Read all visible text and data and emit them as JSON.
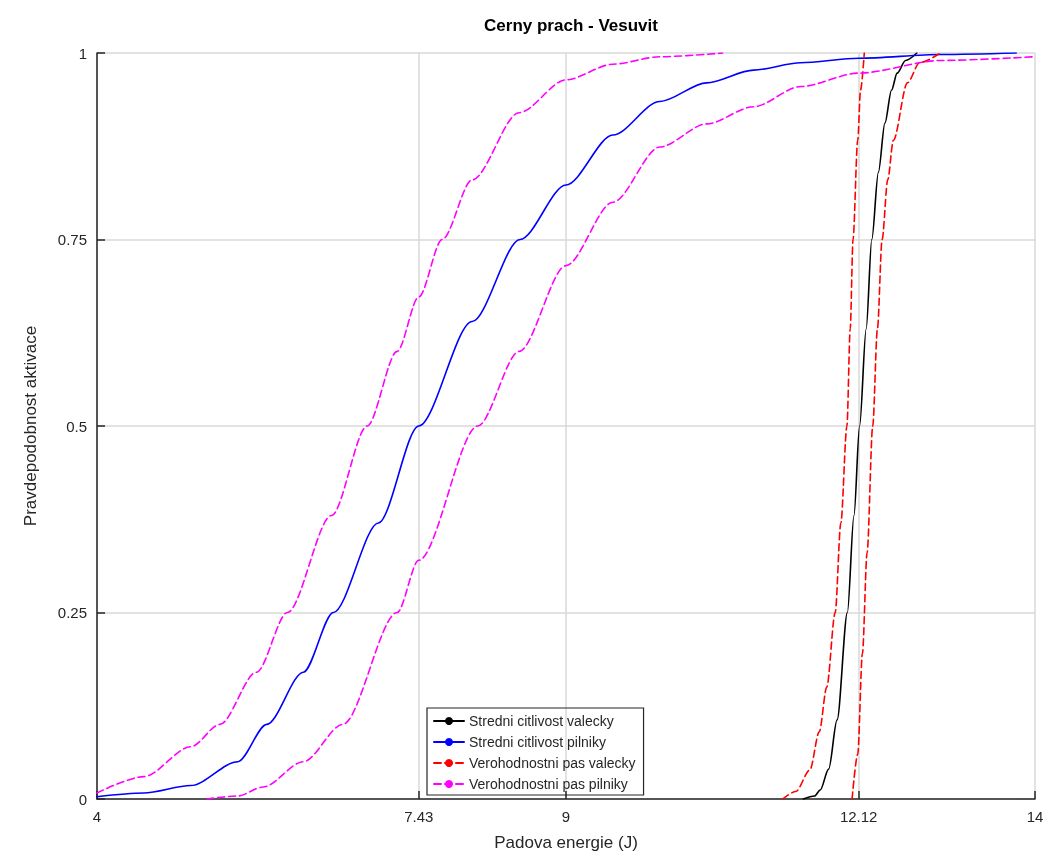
{
  "chart_data": {
    "type": "line",
    "title": "Cerny prach - Vesuvit",
    "xlabel": "Padova energie (J)",
    "ylabel": "Pravdepodobnost aktivace",
    "xlim": [
      4,
      14
    ],
    "xticks": [
      4,
      7.43,
      9,
      12.12,
      14
    ],
    "ylim": [
      0,
      1
    ],
    "yticks": [
      0,
      0.25,
      0.5,
      0.75,
      1
    ],
    "grid": true,
    "legend": "bottom",
    "marker": "none",
    "series": [
      {
        "name": "Stredni citlivost valecky",
        "color": "#000000",
        "line_style": "solid",
        "x": [
          11.53,
          11.65,
          11.71,
          11.8,
          11.89,
          12.0,
          12.07,
          12.13,
          12.2,
          12.26,
          12.33,
          12.4,
          12.47,
          12.53,
          12.62,
          12.74
        ],
        "values": [
          0,
          0.004,
          0.012,
          0.04,
          0.106,
          0.25,
          0.38,
          0.5,
          0.63,
          0.75,
          0.84,
          0.906,
          0.95,
          0.973,
          0.99,
          1.0
        ]
      },
      {
        "name": "Stredni citlivost pilniky",
        "color": "#0000ff",
        "line_style": "solid",
        "x": [
          4,
          4.5,
          5,
          5.5,
          5.81,
          6.2,
          6.52,
          7,
          7.43,
          8,
          8.51,
          9,
          9.5,
          10,
          10.5,
          11,
          11.5,
          12.12,
          13,
          13.8
        ],
        "values": [
          0.003,
          0.008,
          0.018,
          0.05,
          0.1,
          0.17,
          0.25,
          0.37,
          0.5,
          0.64,
          0.75,
          0.823,
          0.89,
          0.935,
          0.96,
          0.977,
          0.987,
          0.993,
          0.998,
          1.0
        ]
      },
      {
        "name": "Verohodnostni pas valecky",
        "color": "#ff0000",
        "line_style": "dashed",
        "x": [
          11.31,
          11.45,
          11.6,
          11.7,
          11.78,
          11.87,
          11.93,
          11.995,
          12.03,
          12.06,
          12.11,
          12.14,
          12.18
        ],
        "values": [
          0,
          0.01,
          0.039,
          0.09,
          0.15,
          0.25,
          0.37,
          0.5,
          0.63,
          0.75,
          0.883,
          0.95,
          1.0
        ]
      },
      {
        "color": "#ff0000",
        "line_style": "dashed",
        "x": [
          12.05,
          12.11,
          12.16,
          12.21,
          12.27,
          12.32,
          12.37,
          12.43,
          12.49,
          12.64,
          12.77,
          12.99
        ],
        "values": [
          0,
          0.06,
          0.195,
          0.33,
          0.5,
          0.63,
          0.75,
          0.83,
          0.883,
          0.96,
          0.987,
          1.0
        ]
      },
      {
        "name": "Verohodnostni pas pilniky",
        "color": "#ff00ff",
        "line_style": "dashed",
        "x": [
          4,
          4.5,
          5,
          5.31,
          5.7,
          6.03,
          6.5,
          6.88,
          7.2,
          7.43,
          7.68,
          8,
          8.5,
          9,
          9.5,
          10,
          10.67
        ],
        "values": [
          0.008,
          0.03,
          0.07,
          0.1,
          0.17,
          0.25,
          0.38,
          0.5,
          0.6,
          0.673,
          0.75,
          0.83,
          0.92,
          0.964,
          0.985,
          0.995,
          1.0
        ]
      },
      {
        "color": "#ff00ff",
        "line_style": "dashed",
        "x": [
          5.17,
          5.5,
          5.77,
          6.2,
          6.62,
          7.2,
          7.43,
          8.06,
          8.5,
          9,
          9.5,
          10,
          10.5,
          11,
          11.5,
          12.12,
          13,
          14
        ],
        "values": [
          0,
          0.004,
          0.016,
          0.05,
          0.1,
          0.25,
          0.32,
          0.5,
          0.6,
          0.715,
          0.8,
          0.874,
          0.905,
          0.928,
          0.955,
          0.973,
          0.99,
          0.995
        ]
      }
    ]
  }
}
